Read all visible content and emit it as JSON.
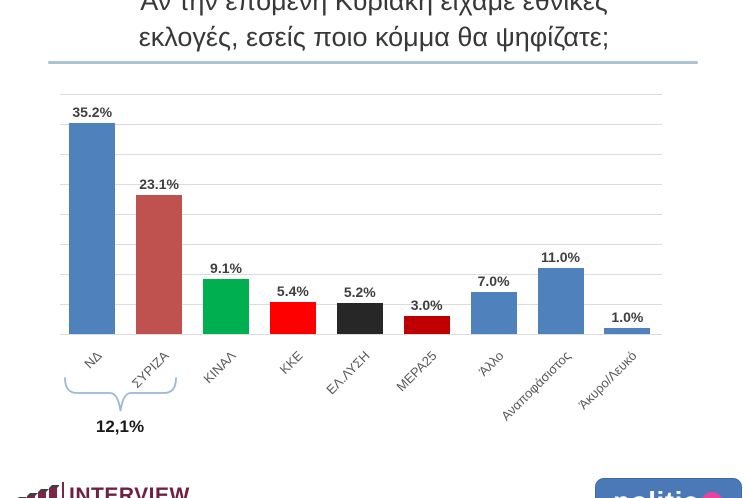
{
  "title": {
    "line1": "Αν την επόμενη Κυριακή είχαμε εθνικές",
    "line2": "εκλογές, εσείς ποιο κόμμα θα ψηφίζατε;"
  },
  "chart_data": {
    "type": "bar",
    "title": "Αν την επόμενη Κυριακή είχαμε εθνικές εκλογές, εσείς ποιο κόμμα θα ψηφίζατε;",
    "categories": [
      "ΝΔ",
      "ΣΥΡΙΖΑ",
      "ΚΙΝΑΛ",
      "ΚΚΕ",
      "ΕΛ.ΛΥΣΗ",
      "ΜΕΡΑ25",
      "Άλλο",
      "Αναποφάσιστος",
      "Άκυρο/Λευκό"
    ],
    "values": [
      35.2,
      23.1,
      9.1,
      5.4,
      5.2,
      3.0,
      7.0,
      11.0,
      1.0
    ],
    "value_labels": [
      "35.2%",
      "23.1%",
      "9.1%",
      "5.4%",
      "5.2%",
      "3.0%",
      "7.0%",
      "11.0%",
      "1.0%"
    ],
    "bar_colors": [
      "#4f81bd",
      "#bf514e",
      "#00b050",
      "#ff0000",
      "#272727",
      "#c00000",
      "#4f81bd",
      "#4f81bd",
      "#4f81bd"
    ],
    "xlabel": "",
    "ylabel": "",
    "ylim": [
      0,
      40
    ],
    "gridline_interval": 5,
    "grid": true,
    "legend": "none",
    "annotation": {
      "label": "12,1%",
      "spans": [
        "ΝΔ",
        "ΣΥΡΙΖΑ"
      ]
    }
  },
  "bracket": {
    "label": "12,1%"
  },
  "footer": {
    "interview_logo_text": "INTERVIEW",
    "politic_logo_text": "politic"
  },
  "colors": {
    "bar_blue": "#4f81bd",
    "bar_syriza_red": "#bf514e",
    "bar_green": "#00b050",
    "bar_red": "#ff0000",
    "bar_black": "#272727",
    "bar_dark_red": "#c00000",
    "gridline": "#dcdcdc",
    "title_divider": "#abc4d2",
    "bracket_blue": "#9cb8d9",
    "interview_maroon": "#6e2144",
    "politic_blue": "#4b79b8",
    "politic_pink": "#e8449c"
  }
}
